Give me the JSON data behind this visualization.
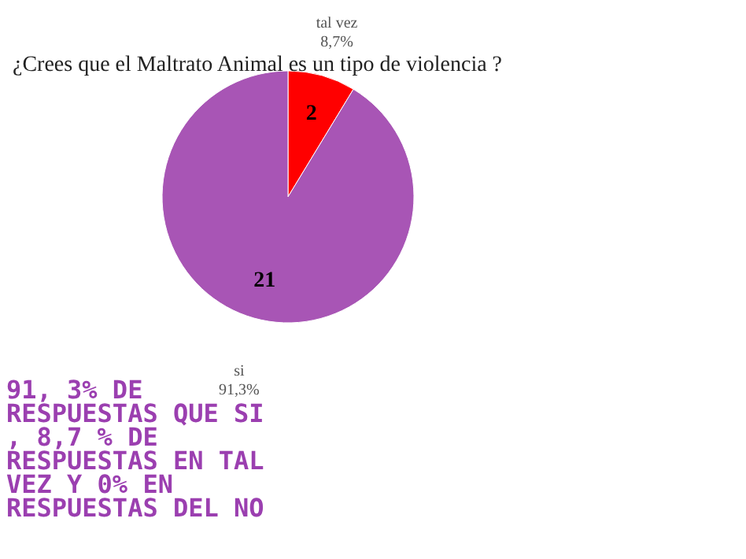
{
  "chart_data": {
    "type": "pie",
    "title": "¿Crees que el Maltrato Animal es un tipo de violencia ?",
    "categories": [
      "tal vez",
      "si"
    ],
    "values": [
      2,
      21
    ],
    "colors": [
      "#ff0000",
      "#a855b5"
    ],
    "data_labels": true,
    "legend": false,
    "annotations": [
      "8,7%",
      "91,3%",
      "91, 3% DE RESPUESTAS QUE SI , 8,7 % DE RESPUESTAS EN TAL VEZ Y 0% EN RESPUESTAS DEL NO"
    ]
  }
}
